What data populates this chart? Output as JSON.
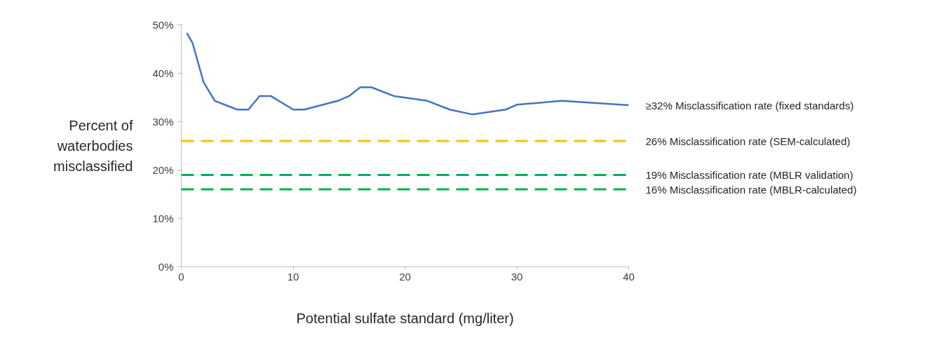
{
  "chart_data": {
    "type": "line",
    "xlabel": "Potential sulfate standard (mg/liter)",
    "ylabel": "Percent of waterbodies misclassified",
    "series": [
      {
        "name": "≥32% Misclassification rate (fixed standards)",
        "color": "#4472c4",
        "x": [
          0.5,
          1,
          2,
          3,
          5,
          6,
          7,
          8,
          10,
          11,
          14,
          15,
          16,
          17,
          19,
          22,
          24,
          26,
          29,
          30,
          34,
          40
        ],
        "values": [
          48.3,
          46.3,
          38.1,
          34.3,
          32.5,
          32.5,
          35.3,
          35.3,
          32.5,
          32.5,
          34.3,
          35.3,
          37.1,
          37.1,
          35.3,
          34.3,
          32.5,
          31.5,
          32.5,
          33.5,
          34.3,
          33.4
        ]
      }
    ],
    "ref_lines": [
      {
        "axis": "y",
        "value": 26,
        "label": "26% Misclassification rate (SEM-calculated)",
        "color": "#ffc000",
        "line_style": "dashed"
      },
      {
        "axis": "y",
        "value": 19,
        "label": "19% Misclassification rate (MBLR validation)",
        "color": "#00b050",
        "line_style": "dashed"
      },
      {
        "axis": "y",
        "value": 16,
        "label": "16% Misclassification rate (MBLR-calculated)",
        "color": "#00b050",
        "line_style": "dashed"
      }
    ],
    "xlim": [
      0,
      40
    ],
    "ylim": [
      0,
      50
    ],
    "xticks": [
      0,
      10,
      20,
      30,
      40
    ],
    "yticks": [
      {
        "value": 0,
        "label": "0%"
      },
      {
        "value": 10,
        "label": "10%"
      },
      {
        "value": 20,
        "label": "20%"
      },
      {
        "value": 30,
        "label": "30%"
      },
      {
        "value": 40,
        "label": "40%"
      },
      {
        "value": 50,
        "label": "50%"
      }
    ],
    "grid": false,
    "legend": false,
    "marker": "none",
    "line_style": "solid"
  }
}
